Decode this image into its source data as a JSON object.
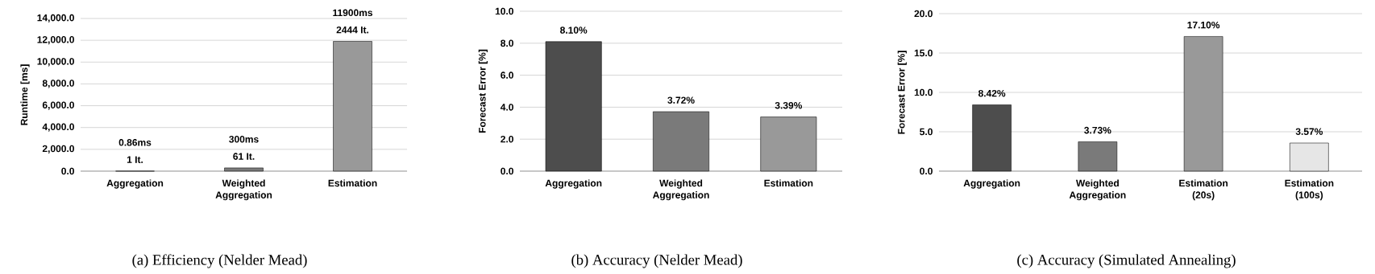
{
  "chart_data": [
    {
      "type": "bar",
      "title": "(a) Efficiency (Nelder Mead)",
      "ylabel": "Runtime [ms]",
      "categories": [
        "Aggregation",
        "Weighted Aggregation",
        "Estimation"
      ],
      "values": [
        0.86,
        300,
        11900
      ],
      "colors": [
        "#4d4d4d",
        "#7a7a7a",
        "#999999"
      ],
      "value_labels": [
        "0.86ms",
        "300ms",
        "11900ms"
      ],
      "annotations": [
        {
          "text": "1 It.",
          "x": "Aggregation",
          "y": 0.86
        },
        {
          "text": "61 It.",
          "x": "Weighted Aggregation",
          "y": 300
        },
        {
          "text": "2444 It.",
          "x": "Estimation",
          "y": 11900
        }
      ],
      "ylim": [
        0,
        14000
      ],
      "yticks": [
        {
          "value": 0,
          "label": "0.0"
        },
        {
          "value": 2000,
          "label": "2,000.0"
        },
        {
          "value": 4000,
          "label": "4,000.0"
        },
        {
          "value": 6000,
          "label": "6,000.0"
        },
        {
          "value": 8000,
          "label": "8,000.0"
        },
        {
          "value": 10000,
          "label": "10,000.0"
        },
        {
          "value": 12000,
          "label": "12,000.0"
        },
        {
          "value": 14000,
          "label": "14,000.0"
        }
      ],
      "grid": "y"
    },
    {
      "type": "bar",
      "title": "(b) Accuracy (Nelder Mead)",
      "ylabel": "Forecast Error [%]",
      "categories": [
        "Aggregation",
        "Weighted Aggregation",
        "Estimation"
      ],
      "values": [
        8.1,
        3.72,
        3.39
      ],
      "colors": [
        "#4d4d4d",
        "#7a7a7a",
        "#999999"
      ],
      "value_labels": [
        "8.10%",
        "3.72%",
        "3.39%"
      ],
      "ylim": [
        0,
        10
      ],
      "yticks": [
        {
          "value": 0,
          "label": "0.0"
        },
        {
          "value": 2,
          "label": "2.0"
        },
        {
          "value": 4,
          "label": "4.0"
        },
        {
          "value": 6,
          "label": "6.0"
        },
        {
          "value": 8,
          "label": "8.0"
        },
        {
          "value": 10,
          "label": "10.0"
        }
      ],
      "grid": "y"
    },
    {
      "type": "bar",
      "title": "(c) Accuracy (Simulated Annealing)",
      "ylabel": "Forecast Error [%]",
      "categories": [
        "Aggregation",
        "Weighted Aggregation",
        "Estimation (20s)",
        "Estimation (100s)"
      ],
      "values": [
        8.42,
        3.73,
        17.1,
        3.57
      ],
      "colors": [
        "#4d4d4d",
        "#7a7a7a",
        "#999999",
        "#e6e6e6"
      ],
      "value_labels": [
        "8.42%",
        "3.73%",
        "17.10%",
        "3.57%"
      ],
      "ylim": [
        0,
        20
      ],
      "yticks": [
        {
          "value": 0,
          "label": "0.0"
        },
        {
          "value": 5,
          "label": "5.0"
        },
        {
          "value": 10,
          "label": "10.0"
        },
        {
          "value": 15,
          "label": "15.0"
        },
        {
          "value": 20,
          "label": "20.0"
        }
      ],
      "grid": "y"
    }
  ]
}
